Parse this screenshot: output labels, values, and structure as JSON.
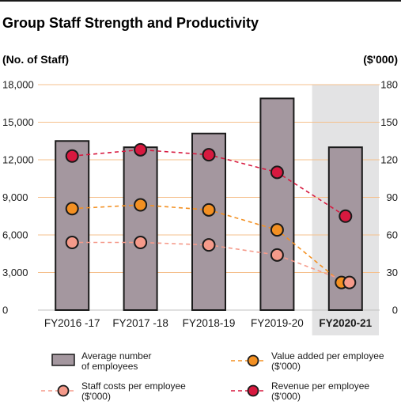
{
  "chart_data": {
    "type": "bar",
    "title": "Group Staff Strength and Productivity",
    "left_axis_label": "(No. of Staff)",
    "right_axis_label": "($'000)",
    "categories": [
      "FY2016 -17",
      "FY2017 -18",
      "FY2018-19",
      "FY2019-20",
      "FY2020-21"
    ],
    "highlighted_category": "FY2020-21",
    "left_axis": {
      "min": 0,
      "max": 18000,
      "ticks": [
        "0",
        "3,000",
        "6,000",
        "9,000",
        "12,000",
        "15,000",
        "18,000"
      ]
    },
    "right_axis": {
      "min": 0,
      "max": 180,
      "ticks": [
        "0",
        "30",
        "60",
        "90",
        "120",
        "150",
        "180"
      ]
    },
    "grid": true,
    "legend_position": "bottom",
    "series": [
      {
        "name": "Average number of employees",
        "name_lines": [
          "Average number",
          "of employees"
        ],
        "kind": "bar",
        "axis": "left",
        "color": "#a4979f",
        "values": [
          13500,
          13000,
          14100,
          16900,
          13000
        ]
      },
      {
        "name": "Value added per employee ($'000)",
        "name_lines": [
          "Value added per employee",
          "($'000)"
        ],
        "kind": "line",
        "axis": "right",
        "color": "#f39022",
        "values": [
          81,
          84,
          80,
          64,
          22
        ]
      },
      {
        "name": "Staff costs per employee ($'000)",
        "name_lines": [
          "Staff costs per employee",
          "($'000)"
        ],
        "kind": "line",
        "axis": "right",
        "color": "#f59a8a",
        "values": [
          54,
          54,
          52,
          44,
          22
        ]
      },
      {
        "name": "Revenue per employee ($'000)",
        "name_lines": [
          "Revenue per employee",
          "($'000)"
        ],
        "kind": "line",
        "axis": "right",
        "color": "#d7193f",
        "values": [
          123,
          128,
          124,
          110,
          75
        ]
      }
    ]
  }
}
